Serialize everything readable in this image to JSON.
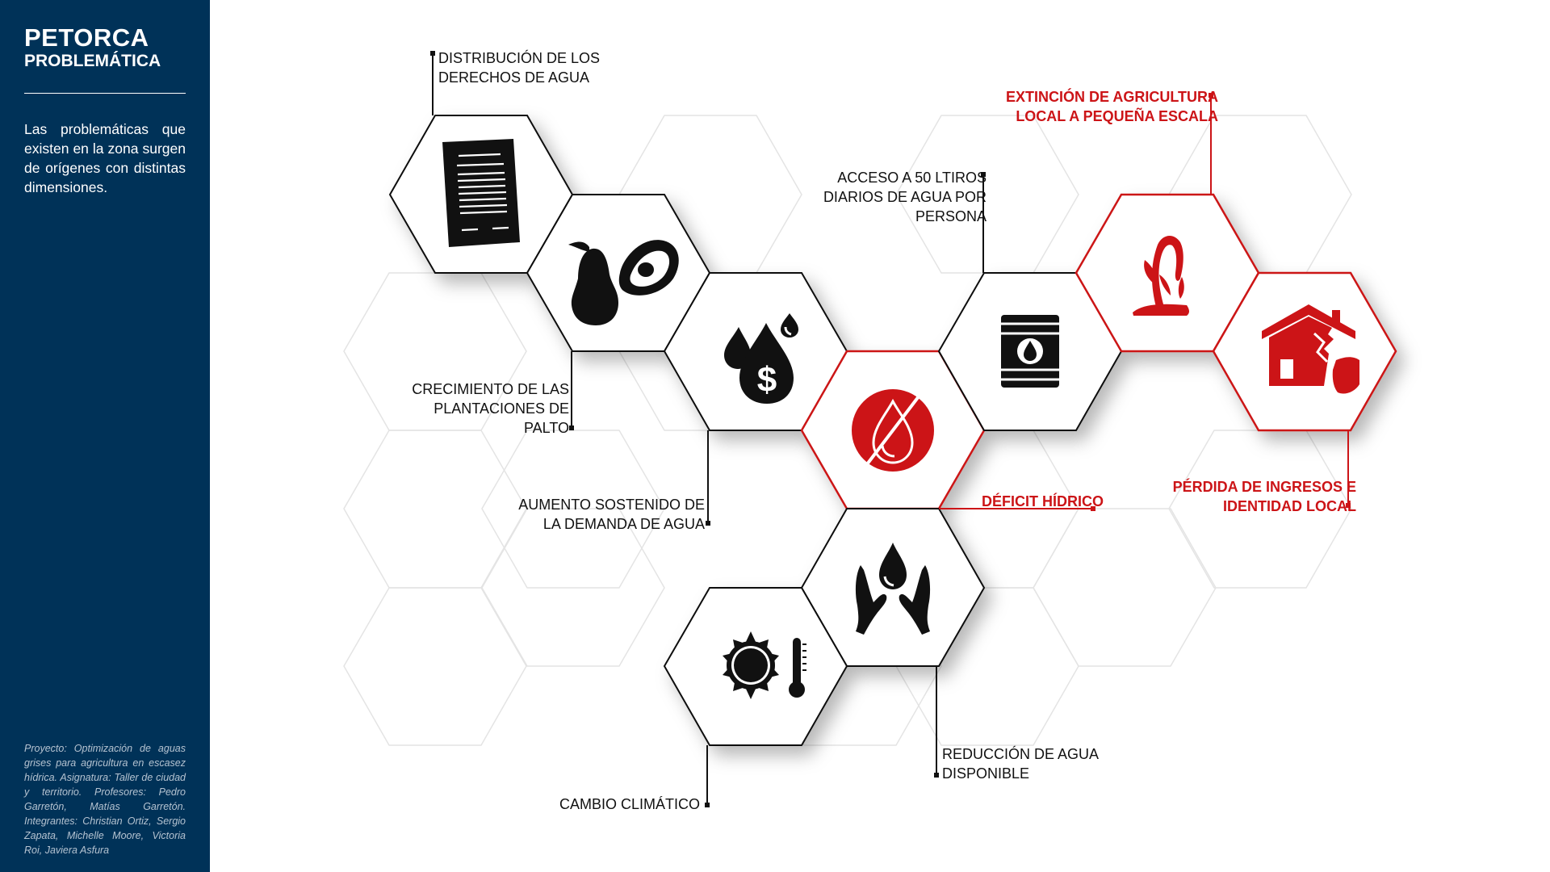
{
  "sidebar": {
    "title": "PETORCA",
    "subtitle": "PROBLEMÁTICA",
    "body": "Las problemáticas que existen en la zona surgen de orígenes con distintas dimensiones.",
    "footer": "Proyecto: Optimización de aguas grises para agricultura en escasez hídrica. Asignatura: Taller de ciudad y territorio. Profesores: Pedro Garretón, Matías Garretón. Integrantes: Christian Ortiz, Sergio Zapata, Michelle Moore, Victoria Roi, Javiera Asfura"
  },
  "colors": {
    "sidebar_bg": "#003258",
    "accent_red": "#cc1417",
    "icon_black": "#111111",
    "ghost_hex": "#e4e4e4"
  },
  "nodes": [
    {
      "id": "derechos",
      "icon": "document-icon",
      "label": "DISTRIBUCIÓN DE LOS\nDERECHOS DE AGUA",
      "highlight": false
    },
    {
      "id": "palto",
      "icon": "avocado-icon",
      "label": "CRECIMIENTO DE LAS\nPLANTACIONES DE\nPALTO",
      "highlight": false
    },
    {
      "id": "demanda",
      "icon": "water-money-icon",
      "label": "AUMENTO SOSTENIDO DE\nLA DEMANDA DE AGUA",
      "highlight": false
    },
    {
      "id": "deficit",
      "icon": "no-water-icon",
      "label": "DÉFICIT HÍDRICO",
      "highlight": true
    },
    {
      "id": "acceso",
      "icon": "water-barrel-icon",
      "label": "ACCESO A 50 LTIROS\nDIARIOS DE AGUA POR\nPERSONA",
      "highlight": false
    },
    {
      "id": "extincion",
      "icon": "wilted-plant-icon",
      "label": "EXTINCIÓN DE AGRICULTURA\nLOCAL A PEQUEÑA ESCALA",
      "highlight": true
    },
    {
      "id": "perdida",
      "icon": "broken-house-icon",
      "label": "PÉRDIDA DE INGRESOS E\nIDENTIDAD LOCAL",
      "highlight": true
    },
    {
      "id": "reduccion",
      "icon": "hands-water-icon",
      "label": "REDUCCIÓN DE AGUA\nDISPONIBLE",
      "highlight": false
    },
    {
      "id": "clima",
      "icon": "sun-thermometer-icon",
      "label": "CAMBIO CLIMÁTICO",
      "highlight": false
    }
  ]
}
